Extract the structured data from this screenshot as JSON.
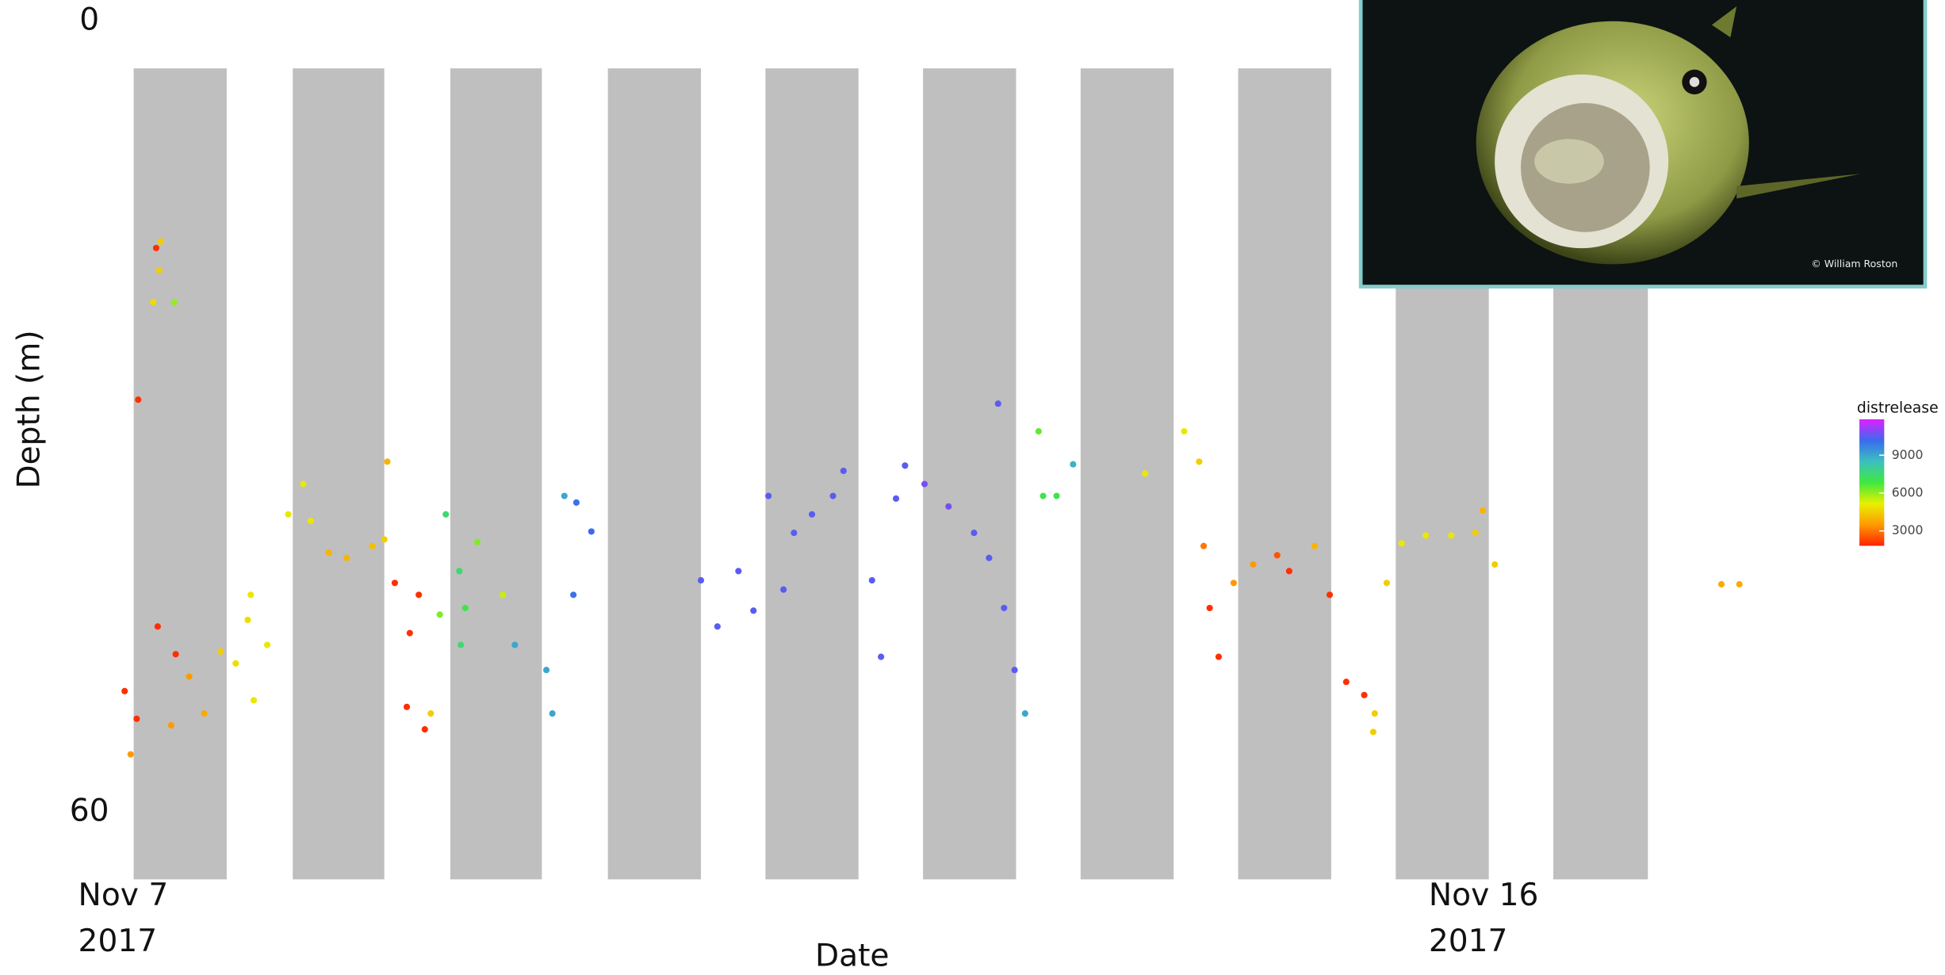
{
  "chart_data": {
    "type": "scatter",
    "xlabel": "Date",
    "ylabel": "Depth (m)",
    "xlim": [
      7,
      19.44
    ],
    "ylim": [
      0,
      60
    ],
    "y_inverted": true,
    "yticks": [
      0,
      60
    ],
    "xticks": [
      {
        "value": 7,
        "label": "Nov 7\n2017"
      },
      {
        "value": 16,
        "label": "Nov 16\n2017"
      }
    ],
    "night_color": "#bfbfbf",
    "night_bands": [
      [
        7.37,
        7.99
      ],
      [
        8.43,
        9.04
      ],
      [
        9.48,
        10.09
      ],
      [
        10.53,
        11.15
      ],
      [
        11.58,
        12.2
      ],
      [
        12.63,
        13.25
      ],
      [
        13.68,
        14.3
      ],
      [
        14.73,
        15.35
      ],
      [
        15.78,
        16.4
      ],
      [
        16.83,
        17.46
      ]
    ],
    "x": [
      7.35,
      7.31,
      7.39,
      7.4,
      7.53,
      7.65,
      7.74,
      7.62,
      7.84,
      7.95,
      7.52,
      7.55,
      7.54,
      7.5,
      7.64,
      8.05,
      8.13,
      8.17,
      8.26,
      8.15,
      8.4,
      8.5,
      8.55,
      8.67,
      8.79,
      8.96,
      9.04,
      9.06,
      9.11,
      9.21,
      9.19,
      9.31,
      9.27,
      9.35,
      9.41,
      9.45,
      9.54,
      9.58,
      9.55,
      9.66,
      9.83,
      9.91,
      10.12,
      10.16,
      10.24,
      10.3,
      10.32,
      10.42,
      11.15,
      11.26,
      11.4,
      11.5,
      11.6,
      11.7,
      11.77,
      11.89,
      12.03,
      12.1,
      12.29,
      12.35,
      12.45,
      12.51,
      12.64,
      12.8,
      12.97,
      13.07,
      13.17,
      13.24,
      13.31,
      13.13,
      13.4,
      13.43,
      13.52,
      13.63,
      14.11,
      14.37,
      14.47,
      14.5,
      14.54,
      14.6,
      14.7,
      14.83,
      14.99,
      15.07,
      15.24,
      15.34,
      15.45,
      15.57,
      15.64,
      15.63,
      15.72,
      15.82,
      15.98,
      16.15,
      16.31,
      16.36,
      16.44,
      17.95,
      18.07
    ],
    "y": [
      55.6,
      50.8,
      52.9,
      28.7,
      45.9,
      48.0,
      49.7,
      53.4,
      52.5,
      47.8,
      17.2,
      16.7,
      18.9,
      21.3,
      21.3,
      48.7,
      45.4,
      51.5,
      47.3,
      43.5,
      37.4,
      35.1,
      37.9,
      40.3,
      40.7,
      39.8,
      39.3,
      33.4,
      42.6,
      46.4,
      52.0,
      53.7,
      43.5,
      52.5,
      45.0,
      37.4,
      41.7,
      44.5,
      47.3,
      39.5,
      43.5,
      47.3,
      49.2,
      52.5,
      36.0,
      43.5,
      36.5,
      38.7,
      42.4,
      45.9,
      41.7,
      44.7,
      36.0,
      43.1,
      38.8,
      37.4,
      36.0,
      34.1,
      42.4,
      48.2,
      36.2,
      33.7,
      35.1,
      36.8,
      38.8,
      40.7,
      44.5,
      49.2,
      52.5,
      29.0,
      31.1,
      36.0,
      36.0,
      33.6,
      34.3,
      31.1,
      33.4,
      39.8,
      44.5,
      48.2,
      42.6,
      41.2,
      40.5,
      41.7,
      39.8,
      43.5,
      50.1,
      51.1,
      52.5,
      53.9,
      42.6,
      39.6,
      39.0,
      39.0,
      38.8,
      37.1,
      41.2,
      42.7,
      42.7
    ],
    "color_values": [
      3500,
      2000,
      2000,
      2000,
      2000,
      2000,
      3500,
      3500,
      3800,
      4500,
      2000,
      4500,
      4500,
      4800,
      6000,
      4800,
      4800,
      5000,
      5000,
      5000,
      5000,
      5000,
      5000,
      4000,
      4000,
      4200,
      4500,
      4000,
      2000,
      2000,
      2000,
      2000,
      2000,
      4500,
      6200,
      7500,
      7500,
      7000,
      7500,
      6200,
      5500,
      9000,
      9000,
      9000,
      9000,
      10000,
      10000,
      10200,
      10500,
      10500,
      10500,
      10500,
      10500,
      10500,
      10500,
      10500,
      10500,
      10500,
      10500,
      10500,
      10500,
      10500,
      10800,
      10800,
      10500,
      10500,
      10500,
      10500,
      9000,
      10500,
      6500,
      7000,
      7000,
      8800,
      5000,
      5000,
      4500,
      3000,
      2000,
      2000,
      3500,
      3500,
      2500,
      2000,
      4000,
      2000,
      2000,
      2000,
      4500,
      4500,
      4500,
      5000,
      5000,
      5000,
      4500,
      4000,
      4500,
      3800,
      3800
    ],
    "colorbar": {
      "title": "distrelease",
      "lim": [
        1820,
        11850
      ],
      "ticks": [
        3000,
        6000,
        9000
      ],
      "colors": [
        "#ff2200",
        "#ff9a00",
        "#e8f000",
        "#3fe83f",
        "#3cc0c0",
        "#3a6aee",
        "#e020ff"
      ]
    },
    "photo_credit": "© William Roston"
  }
}
